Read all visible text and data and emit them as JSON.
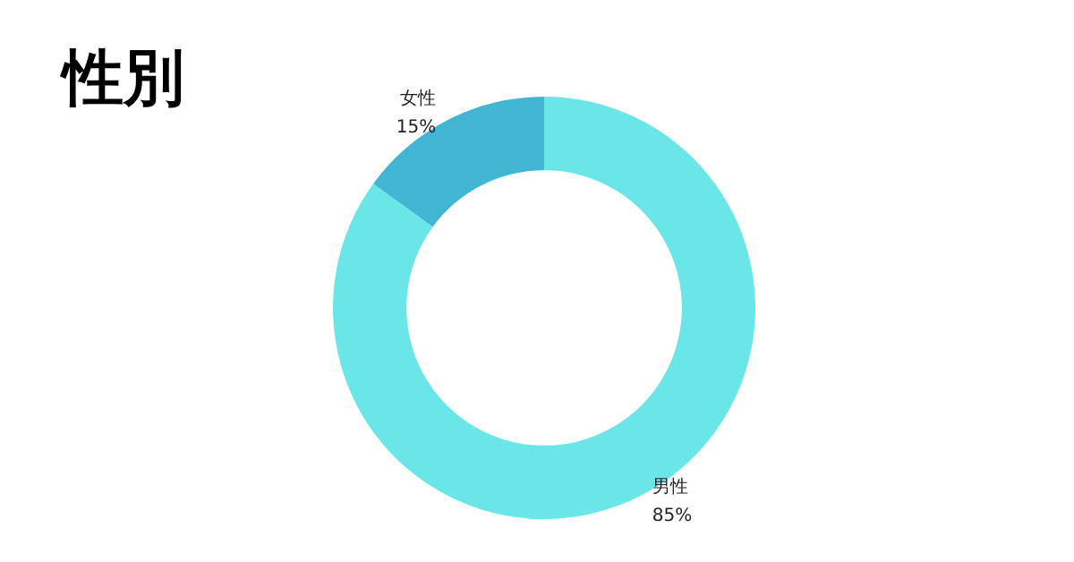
{
  "chart_data": {
    "type": "donut",
    "title": "性別",
    "categories": [
      "男性",
      "女性"
    ],
    "values": [
      85,
      15
    ],
    "colors": [
      "#6ae6e8",
      "#40b6d4"
    ],
    "value_labels": [
      "85%",
      "15%"
    ],
    "legend": false
  }
}
